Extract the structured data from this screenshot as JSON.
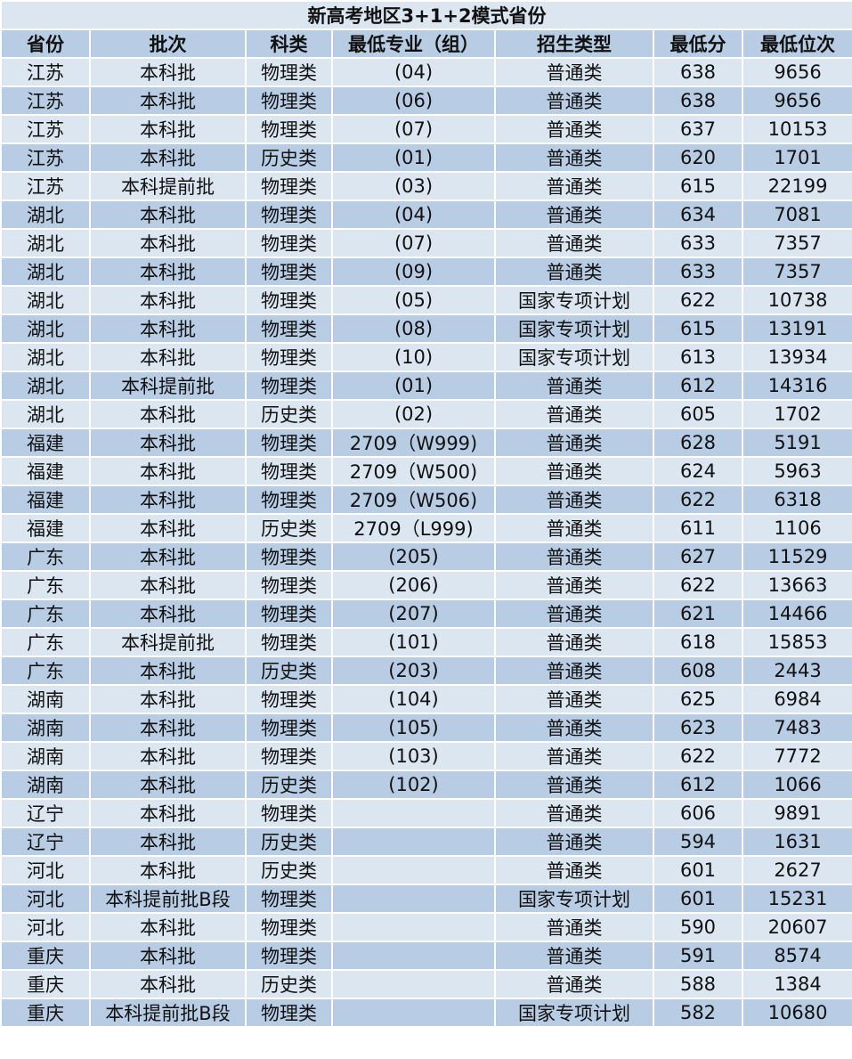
{
  "title": "新高考地区3+1+2模式省份",
  "columns": [
    "省份",
    "批次",
    "科类",
    "最低专业（组）",
    "招生类型",
    "最低分",
    "最低位次"
  ],
  "colors": {
    "light_row": "#dce6f1",
    "dark_row": "#b8cce4"
  },
  "rows": [
    [
      "江苏",
      "本科批",
      "物理类",
      "(04)",
      "普通类",
      "638",
      "9656"
    ],
    [
      "江苏",
      "本科批",
      "物理类",
      "(06)",
      "普通类",
      "638",
      "9656"
    ],
    [
      "江苏",
      "本科批",
      "物理类",
      "(07)",
      "普通类",
      "637",
      "10153"
    ],
    [
      "江苏",
      "本科批",
      "历史类",
      "(01)",
      "普通类",
      "620",
      "1701"
    ],
    [
      "江苏",
      "本科提前批",
      "物理类",
      "(03)",
      "普通类",
      "615",
      "22199"
    ],
    [
      "湖北",
      "本科批",
      "物理类",
      "(04)",
      "普通类",
      "634",
      "7081"
    ],
    [
      "湖北",
      "本科批",
      "物理类",
      "(07)",
      "普通类",
      "633",
      "7357"
    ],
    [
      "湖北",
      "本科批",
      "物理类",
      "(09)",
      "普通类",
      "633",
      "7357"
    ],
    [
      "湖北",
      "本科批",
      "物理类",
      "(05)",
      "国家专项计划",
      "622",
      "10738"
    ],
    [
      "湖北",
      "本科批",
      "物理类",
      "(08)",
      "国家专项计划",
      "615",
      "13191"
    ],
    [
      "湖北",
      "本科批",
      "物理类",
      "(10)",
      "国家专项计划",
      "613",
      "13934"
    ],
    [
      "湖北",
      "本科提前批",
      "物理类",
      "(01)",
      "普通类",
      "612",
      "14316"
    ],
    [
      "湖北",
      "本科批",
      "历史类",
      "(02)",
      "普通类",
      "605",
      "1702"
    ],
    [
      "福建",
      "本科批",
      "物理类",
      "2709（W999)",
      "普通类",
      "628",
      "5191"
    ],
    [
      "福建",
      "本科批",
      "物理类",
      "2709（W500)",
      "普通类",
      "624",
      "5963"
    ],
    [
      "福建",
      "本科批",
      "物理类",
      "2709（W506)",
      "普通类",
      "622",
      "6318"
    ],
    [
      "福建",
      "本科批",
      "历史类",
      "2709（L999)",
      "普通类",
      "611",
      "1106"
    ],
    [
      "广东",
      "本科批",
      "物理类",
      "(205)",
      "普通类",
      "627",
      "11529"
    ],
    [
      "广东",
      "本科批",
      "物理类",
      "(206)",
      "普通类",
      "622",
      "13663"
    ],
    [
      "广东",
      "本科批",
      "物理类",
      "(207)",
      "普通类",
      "621",
      "14466"
    ],
    [
      "广东",
      "本科提前批",
      "物理类",
      "(101)",
      "普通类",
      "618",
      "15853"
    ],
    [
      "广东",
      "本科批",
      "历史类",
      "(203)",
      "普通类",
      "608",
      "2443"
    ],
    [
      "湖南",
      "本科批",
      "物理类",
      "(104)",
      "普通类",
      "625",
      "6984"
    ],
    [
      "湖南",
      "本科批",
      "物理类",
      "(105)",
      "普通类",
      "623",
      "7483"
    ],
    [
      "湖南",
      "本科批",
      "物理类",
      "(103)",
      "普通类",
      "622",
      "7772"
    ],
    [
      "湖南",
      "本科批",
      "历史类",
      "(102)",
      "普通类",
      "612",
      "1066"
    ],
    [
      "辽宁",
      "本科批",
      "物理类",
      "",
      "普通类",
      "606",
      "9891"
    ],
    [
      "辽宁",
      "本科批",
      "历史类",
      "",
      "普通类",
      "594",
      "1631"
    ],
    [
      "河北",
      "本科批",
      "历史类",
      "",
      "普通类",
      "601",
      "2627"
    ],
    [
      "河北",
      "本科提前批B段",
      "物理类",
      "",
      "国家专项计划",
      "601",
      "15231"
    ],
    [
      "河北",
      "本科批",
      "物理类",
      "",
      "普通类",
      "590",
      "20607"
    ],
    [
      "重庆",
      "本科批",
      "物理类",
      "",
      "普通类",
      "591",
      "8574"
    ],
    [
      "重庆",
      "本科批",
      "历史类",
      "",
      "普通类",
      "588",
      "1384"
    ],
    [
      "重庆",
      "本科提前批B段",
      "物理类",
      "",
      "国家专项计划",
      "582",
      "10680"
    ]
  ]
}
